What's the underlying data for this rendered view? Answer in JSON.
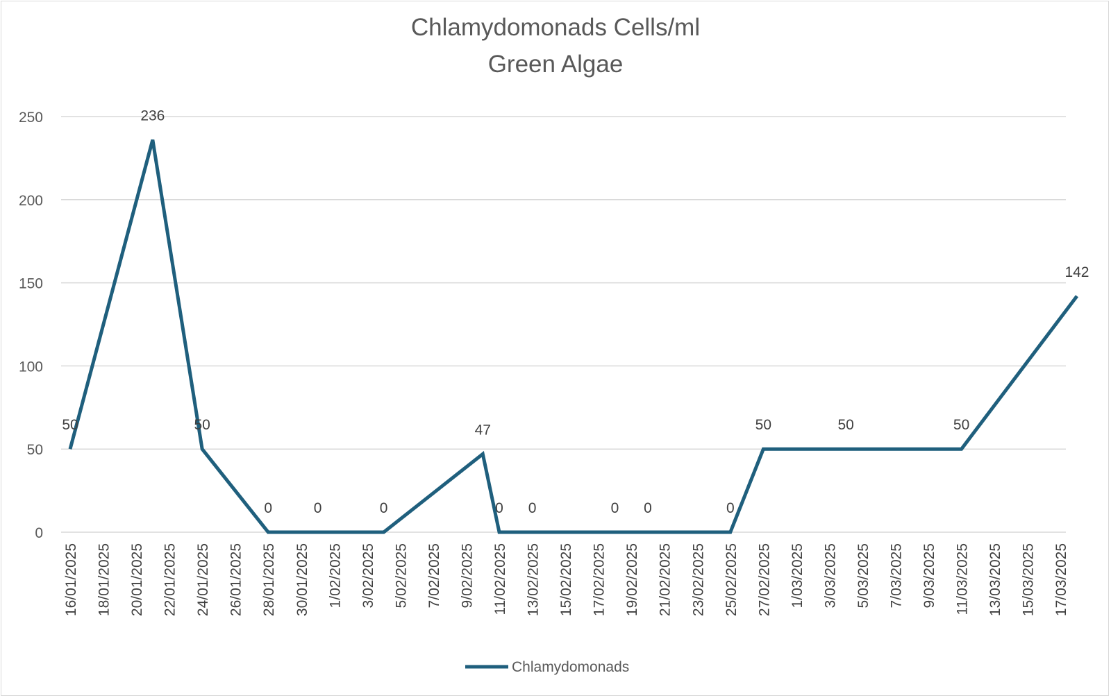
{
  "chart_data": {
    "type": "line",
    "title": "Chlamydomonads Cells/ml",
    "subtitle": "Green Algae",
    "xlabel": "",
    "ylabel": "",
    "ylim": [
      0,
      250
    ],
    "yticks": [
      0,
      50,
      100,
      150,
      200,
      250
    ],
    "x_axis_type": "date",
    "xlim": [
      "2025-01-16",
      "2025-03-18"
    ],
    "x_tick_labels": [
      "16/01/2025",
      "18/01/2025",
      "20/01/2025",
      "22/01/2025",
      "24/01/2025",
      "26/01/2025",
      "28/01/2025",
      "30/01/2025",
      "1/02/2025",
      "3/02/2025",
      "5/02/2025",
      "7/02/2025",
      "9/02/2025",
      "11/02/2025",
      "13/02/2025",
      "15/02/2025",
      "17/02/2025",
      "19/02/2025",
      "21/02/2025",
      "23/02/2025",
      "25/02/2025",
      "27/02/2025",
      "1/03/2025",
      "3/03/2025",
      "5/03/2025",
      "7/03/2025",
      "9/03/2025",
      "11/03/2025",
      "13/03/2025",
      "15/03/2025",
      "17/03/2025"
    ],
    "grid": true,
    "legend_position": "bottom",
    "series": [
      {
        "name": "Chlamydomonads",
        "color": "#1f5f7d",
        "x": [
          "2025-01-16",
          "2025-01-21",
          "2025-01-24",
          "2025-01-28",
          "2025-01-31",
          "2025-02-04",
          "2025-02-10",
          "2025-02-11",
          "2025-02-13",
          "2025-02-18",
          "2025-02-20",
          "2025-02-25",
          "2025-02-27",
          "2025-03-04",
          "2025-03-11",
          "2025-03-18"
        ],
        "values": [
          50,
          236,
          50,
          0,
          0,
          0,
          47,
          0,
          0,
          0,
          0,
          0,
          50,
          50,
          50,
          142
        ],
        "data_labels": [
          "50",
          "236",
          "50",
          "0",
          "0",
          "0",
          "47",
          "0",
          "0",
          "0",
          "0",
          "0",
          "50",
          "50",
          "50",
          "142"
        ]
      }
    ]
  }
}
